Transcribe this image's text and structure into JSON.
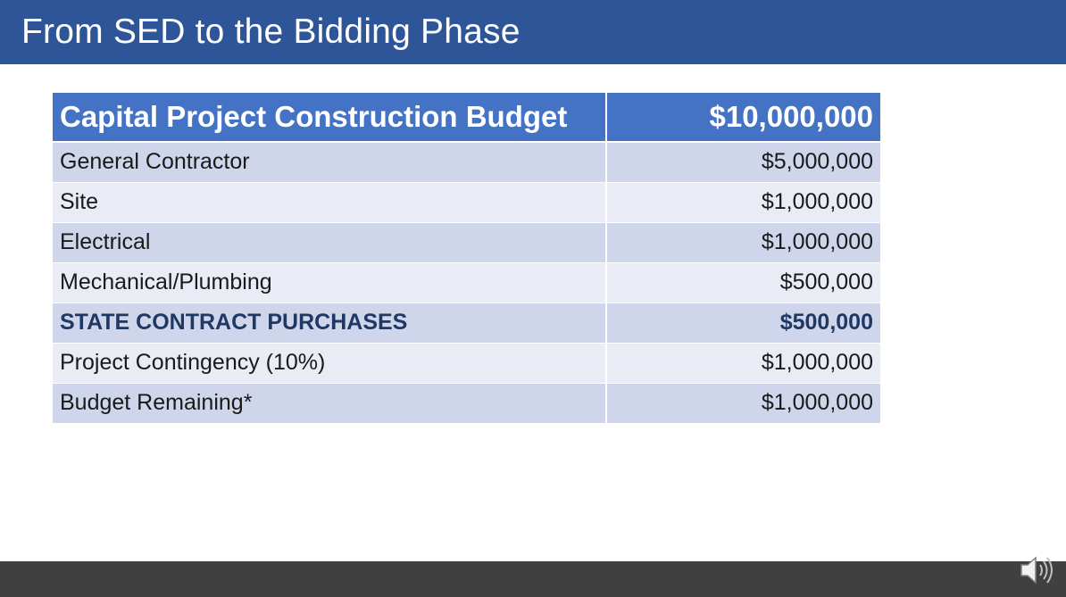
{
  "slide": {
    "title": "From SED to the Bidding Phase"
  },
  "table": {
    "header": {
      "label": "Capital Project Construction Budget",
      "value": "$10,000,000"
    },
    "rows": [
      {
        "label": "General Contractor",
        "value": "$5,000,000",
        "emphasis": false
      },
      {
        "label": "Site",
        "value": "$1,000,000",
        "emphasis": false
      },
      {
        "label": "Electrical",
        "value": "$1,000,000",
        "emphasis": false
      },
      {
        "label": "Mechanical/Plumbing",
        "value": "$500,000",
        "emphasis": false
      },
      {
        "label": "STATE CONTRACT PURCHASES",
        "value": "$500,000",
        "emphasis": true
      },
      {
        "label": "Project Contingency (10%)",
        "value": "$1,000,000",
        "emphasis": false
      },
      {
        "label": "Budget Remaining*",
        "value": "$1,000,000",
        "emphasis": false
      }
    ]
  },
  "audio": {
    "icon": "speaker-icon"
  },
  "colors": {
    "title_bar": "#2e5597",
    "header_row": "#4472c4",
    "row_dark": "#cfd5ea",
    "row_light": "#e9ebf5",
    "emphasis_text": "#1f3864",
    "bottom_bar": "#404040"
  }
}
